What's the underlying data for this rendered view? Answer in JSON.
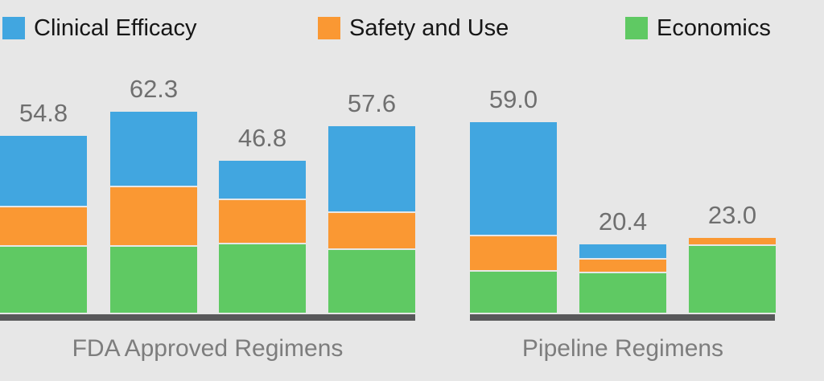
{
  "background_color": "#e7e7e7",
  "chart_data": {
    "type": "bar",
    "stacked": true,
    "title": "",
    "legend_position": "top",
    "grid": false,
    "value_labels": "total above each bar",
    "series_names": [
      "Clinical Efficacy",
      "Safety and Use",
      "Economics"
    ],
    "series_colors": {
      "Clinical Efficacy": "#41a6e0",
      "Safety and Use": "#fa9833",
      "Economics": "#5fc963"
    },
    "legend_text_color": "#161616",
    "value_label_color": "#6f6f6f",
    "axis_label_color": "#7d7d7d",
    "baseline_color": "#58585a",
    "groups": [
      {
        "label": "FDA Approved Regimens",
        "bars": [
          {
            "total_label": "54.8",
            "total": 54.8,
            "segments": {
              "Clinical Efficacy": 22.2,
              "Safety and Use": 11.9,
              "Economics": 20.7
            }
          },
          {
            "total_label": "62.3",
            "total": 62.3,
            "segments": {
              "Clinical Efficacy": 23.3,
              "Safety and Use": 18.3,
              "Economics": 20.7
            }
          },
          {
            "total_label": "46.8",
            "total": 46.8,
            "segments": {
              "Clinical Efficacy": 11.8,
              "Safety and Use": 13.5,
              "Economics": 21.5
            }
          },
          {
            "total_label": "57.6",
            "total": 57.6,
            "segments": {
              "Clinical Efficacy": 26.6,
              "Safety and Use": 11.2,
              "Economics": 19.8
            }
          }
        ]
      },
      {
        "label": "Pipeline Regimens",
        "bars": [
          {
            "total_label": "59.0",
            "total": 59.0,
            "segments": {
              "Clinical Efficacy": 35.4,
              "Safety and Use": 10.8,
              "Economics": 12.8
            }
          },
          {
            "total_label": "20.4",
            "total": 20.4,
            "segments": {
              "Clinical Efficacy": 4.3,
              "Safety and Use": 3.7,
              "Economics": 12.4
            }
          },
          {
            "total_label": "23.0",
            "total": 23.0,
            "segments": {
              "Clinical Efficacy": 0,
              "Safety and Use": 2.1,
              "Economics": 20.9
            }
          }
        ]
      }
    ]
  }
}
